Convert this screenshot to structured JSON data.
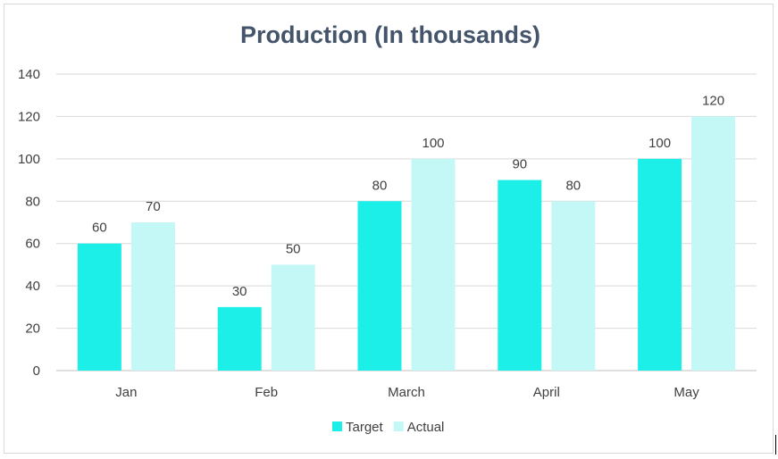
{
  "chart_data": {
    "type": "bar",
    "title": "Production (In thousands)",
    "categories": [
      "Jan",
      "Feb",
      "March",
      "April",
      "May"
    ],
    "series": [
      {
        "name": "Target",
        "values": [
          60,
          30,
          80,
          90,
          100
        ],
        "color": "#1ceee8"
      },
      {
        "name": "Actual",
        "values": [
          70,
          50,
          100,
          80,
          120
        ],
        "color": "#c3f8f6"
      }
    ],
    "ylim": [
      0,
      140
    ],
    "yticks": [
      0,
      20,
      40,
      60,
      80,
      100,
      120,
      140
    ],
    "grid": true,
    "legend": "bottom",
    "data_labels": true
  },
  "colors": {
    "title": "#44546a",
    "gridline": "#d9d9d9",
    "axis": "#bfbfbf",
    "text": "#404040"
  }
}
